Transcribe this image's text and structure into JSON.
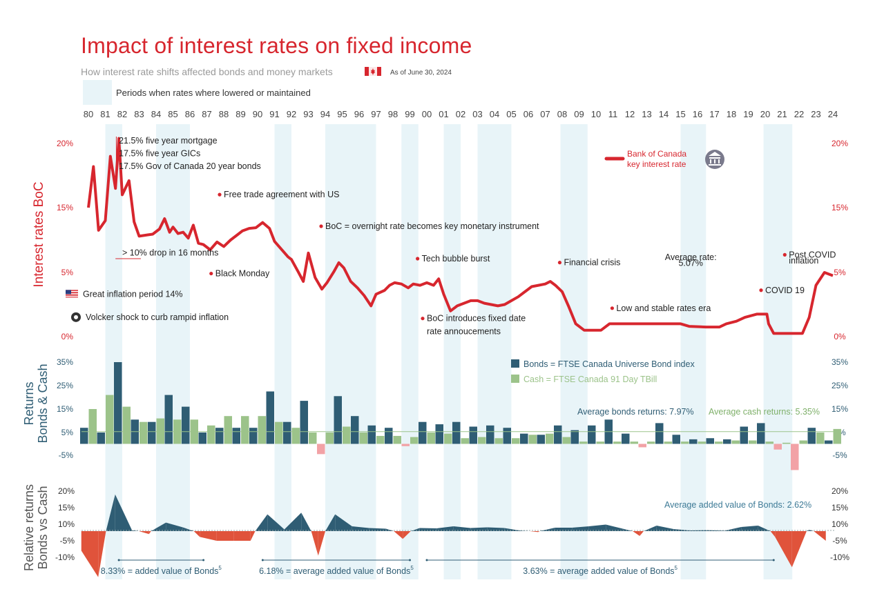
{
  "title": "Impact of interest rates on fixed income",
  "subtitle": "How interest rate shifts affected bonds and money markets",
  "as_of": "As of June 30, 2024",
  "legend_periods": "Periods when rates where lowered or maintained",
  "colors": {
    "red": "#d7262e",
    "bonds": "#2f5d74",
    "cash": "#9cc38a",
    "negative": "#f2a2a6",
    "relative_neg": "#e0533b",
    "shade": "#e8f4f8",
    "grey": "#8a8a8a"
  },
  "icons": {
    "flag_canada": "canada-flag-icon",
    "flag_us": "us-flag-icon",
    "seal": "federal-reserve-seal-icon",
    "bank": "bank-building-icon"
  },
  "chart_data": [
    {
      "type": "line",
      "name": "Interest rates BoC",
      "ylabel": "Interest rates  BoC",
      "ylim": [
        0,
        20
      ],
      "yticks_left": [
        "20%",
        "15%",
        "5%",
        "0%"
      ],
      "yticks_right": [
        "20%",
        "15%",
        "5%",
        "0%"
      ],
      "x_tick_labels": [
        "80",
        "81",
        "82",
        "83",
        "84",
        "85",
        "86",
        "87",
        "88",
        "89",
        "90",
        "91",
        "92",
        "93",
        "94",
        "95",
        "96",
        "97",
        "98",
        "99",
        "00",
        "01",
        "02",
        "03",
        "04",
        "05",
        "06",
        "07",
        "08",
        "09",
        "10",
        "11",
        "12",
        "13",
        "14",
        "15",
        "16",
        "17",
        "18",
        "19",
        "20",
        "21",
        "22",
        "23",
        "24"
      ],
      "x": [
        1980.0,
        1980.3,
        1980.6,
        1981.0,
        1981.3,
        1981.6,
        1981.8,
        1982.0,
        1982.4,
        1982.7,
        1983.0,
        1983.5,
        1983.8,
        1984.2,
        1984.5,
        1984.8,
        1985.0,
        1985.3,
        1985.6,
        1985.9,
        1986.2,
        1986.5,
        1986.8,
        1987.2,
        1987.6,
        1988.0,
        1988.4,
        1988.8,
        1989.1,
        1989.5,
        1989.9,
        1990.3,
        1990.7,
        1991.0,
        1991.4,
        1991.8,
        1992.0,
        1992.4,
        1992.7,
        1993.0,
        1993.4,
        1993.8,
        1994.1,
        1994.5,
        1994.8,
        1995.1,
        1995.5,
        1995.9,
        1996.3,
        1996.7,
        1997.0,
        1997.5,
        1997.8,
        1998.1,
        1998.5,
        1998.9,
        1999.2,
        1999.6,
        2000.0,
        2000.4,
        2000.7,
        2001.0,
        2001.4,
        2001.8,
        2002.2,
        2002.6,
        2003.0,
        2003.4,
        2003.8,
        2004.2,
        2004.6,
        2005.0,
        2005.4,
        2005.8,
        2006.2,
        2006.6,
        2007.0,
        2007.3,
        2007.6,
        2008.0,
        2008.4,
        2008.8,
        2009.3,
        2009.8,
        2010.3,
        2010.8,
        2011.2,
        2011.6,
        2012.5,
        2013.5,
        2014.5,
        2015.0,
        2015.5,
        2016.5,
        2017.3,
        2017.7,
        2018.3,
        2018.8,
        2019.5,
        2020.1,
        2020.2,
        2020.5,
        2021.0,
        2021.8,
        2022.2,
        2022.6,
        2023.0,
        2023.5,
        2024.0
      ],
      "y": [
        15.0,
        18.2,
        11.5,
        13.0,
        19.0,
        16.5,
        20.4,
        16.0,
        17.1,
        12.8,
        10.6,
        10.8,
        10.9,
        11.7,
        13.3,
        11.2,
        12.0,
        11.0,
        11.2,
        10.3,
        12.3,
        9.5,
        9.3,
        8.5,
        9.7,
        9.0,
        10.0,
        10.8,
        11.4,
        11.8,
        11.9,
        12.7,
        11.8,
        9.8,
        8.6,
        7.4,
        7.0,
        5.1,
        4.3,
        8.0,
        4.6,
        3.7,
        4.2,
        5.1,
        6.5,
        5.7,
        4.3,
        3.8,
        3.2,
        2.4,
        3.3,
        3.6,
        4.0,
        4.2,
        4.1,
        3.8,
        4.1,
        4.0,
        4.2,
        4.0,
        4.5,
        3.3,
        2.0,
        2.4,
        2.6,
        2.8,
        2.8,
        2.6,
        2.5,
        2.4,
        2.5,
        2.8,
        3.1,
        3.5,
        3.9,
        4.0,
        4.1,
        4.3,
        4.0,
        3.5,
        2.3,
        1.0,
        0.5,
        0.5,
        0.5,
        1.0,
        1.0,
        1.0,
        1.0,
        1.0,
        1.0,
        1.0,
        0.8,
        0.75,
        0.75,
        1.0,
        1.2,
        1.5,
        1.75,
        1.75,
        1.0,
        0.25,
        0.25,
        0.25,
        0.25,
        1.5,
        4.0,
        5.0,
        4.75
      ],
      "legend": "Bank of Canada key interest rate",
      "rate_lowered_periods": [
        [
          1981.0,
          1982.0
        ],
        [
          1984.0,
          1986.0
        ],
        [
          1991.0,
          1992.0
        ],
        [
          1994.0,
          1995.0
        ],
        [
          1995.0,
          1997.0
        ],
        [
          1998.5,
          1999.5
        ],
        [
          2001.0,
          2002.0
        ],
        [
          2003.0,
          2005.0
        ],
        [
          2007.9,
          2009.5
        ],
        [
          2015.0,
          2016.5
        ],
        [
          2019.9,
          2021.6
        ]
      ],
      "annotations": [
        {
          "label": "21.5% five year mortgage",
          "x": 1981.8,
          "y": 20.0
        },
        {
          "label": "17.5% five year GICs",
          "x": 1981.8,
          "y": 19.0
        },
        {
          "label": "17.5% Gov of Canada 20 year bonds",
          "x": 1981.8,
          "y": 18.0
        },
        {
          "label": "Free trade agreement with US",
          "x": 1988.0,
          "y": 15.8
        },
        {
          "label": "BoC = overnight rate becomes key monetary instrument",
          "x": 1994.0,
          "y": 11.7
        },
        {
          "label": "> 10% drop in 16 months",
          "x": 1982.0,
          "y": 7.6
        },
        {
          "label": "Black Monday",
          "x": 1987.5,
          "y": 4.7
        },
        {
          "label": "Tech bubble burst",
          "x": 1999.7,
          "y": 6.7
        },
        {
          "label": "BoC introduces fixed date",
          "x": 2000.0,
          "y": 1.2
        },
        {
          "label": "rate annoucements",
          "x": 2000.0,
          "y": 0.2
        },
        {
          "label": "Financial crisis",
          "x": 2008.1,
          "y": 6.1
        },
        {
          "label": "Low and stable rates era",
          "x": 2011.2,
          "y": 2.0
        },
        {
          "label": "Average rate:",
          "x": 2015.6,
          "y": 6.9
        },
        {
          "label": "5.07%",
          "x": 2015.6,
          "y": 6.0
        },
        {
          "label": "COVID 19",
          "x": 2020.0,
          "y": 3.4
        },
        {
          "label": "Post COVID",
          "x": 2021.4,
          "y": 7.3
        },
        {
          "label": "inflation",
          "x": 2021.4,
          "y": 6.4
        },
        {
          "label": "Great inflation period 14%",
          "x": 1980.0,
          "y": 3.1
        },
        {
          "label": "Volcker shock to curb rampid inflation",
          "x": 1980.0,
          "y": 1.3
        }
      ]
    },
    {
      "type": "bar",
      "name": "Returns Bonds & Cash",
      "ylabel": "Returns Bonds & Cash",
      "ylim": [
        -10,
        35
      ],
      "yticks": [
        "35%",
        "25%",
        "15%",
        "5%",
        "-5%"
      ],
      "categories": [
        "80",
        "81",
        "82",
        "83",
        "84",
        "85",
        "86",
        "87",
        "88",
        "89",
        "90",
        "91",
        "92",
        "93",
        "94",
        "95",
        "96",
        "97",
        "98",
        "99",
        "00",
        "01",
        "02",
        "03",
        "04",
        "05",
        "06",
        "07",
        "08",
        "09",
        "10",
        "11",
        "12",
        "13",
        "14",
        "15",
        "16",
        "17",
        "18",
        "19",
        "20",
        "21",
        "22",
        "23",
        "24"
      ],
      "series": [
        {
          "name": "Bonds = FTSE Canada Universe Bond index",
          "values": [
            7.0,
            5.0,
            35.0,
            10.5,
            9.5,
            21.0,
            16.0,
            5.0,
            7.0,
            7.0,
            7.0,
            22.5,
            9.5,
            18.5,
            -4.5,
            20.5,
            12.0,
            8.0,
            7.0,
            -1.0,
            9.5,
            8.5,
            9.5,
            7.5,
            8.0,
            7.0,
            4.5,
            4.0,
            8.0,
            6.0,
            8.0,
            10.5,
            4.5,
            -1.5,
            9.0,
            4.0,
            2.0,
            2.5,
            2.0,
            7.5,
            9.0,
            -2.5,
            -11.5,
            7.0,
            1.5
          ]
        },
        {
          "name": "Cash = FTSE Canada 91 Day TBill",
          "values": [
            15.0,
            21.0,
            16.0,
            9.5,
            11.0,
            10.5,
            10.5,
            8.0,
            12.0,
            12.0,
            12.0,
            9.5,
            7.0,
            5.0,
            5.0,
            7.5,
            5.0,
            3.5,
            3.5,
            3.0,
            5.0,
            4.5,
            2.5,
            3.0,
            2.5,
            2.5,
            4.0,
            4.5,
            3.0,
            1.0,
            1.0,
            1.0,
            1.0,
            1.0,
            1.0,
            1.0,
            1.0,
            1.0,
            1.5,
            1.5,
            1.0,
            0.5,
            1.5,
            5.0,
            6.5
          ]
        }
      ],
      "averages": [
        {
          "label": "Average bonds returns: 7.97%",
          "value": 7.97
        },
        {
          "label": "Average cash returns: 5.35%",
          "value": 5.35
        }
      ]
    },
    {
      "type": "area",
      "name": "Relative returns Bonds vs Cash",
      "ylabel": "Relative returns Bonds vs Cash",
      "ylim": [
        -10,
        20
      ],
      "yticks": [
        "20%",
        "15%",
        "10%",
        "-5%",
        "-10%"
      ],
      "x": [
        "80",
        "81",
        "82",
        "83",
        "84",
        "85",
        "86",
        "87",
        "88",
        "89",
        "90",
        "91",
        "92",
        "93",
        "94",
        "95",
        "96",
        "97",
        "98",
        "99",
        "00",
        "01",
        "02",
        "03",
        "04",
        "05",
        "06",
        "07",
        "08",
        "09",
        "10",
        "11",
        "12",
        "13",
        "14",
        "15",
        "16",
        "17",
        "18",
        "19",
        "20",
        "21",
        "22",
        "23",
        "24"
      ],
      "values": [
        -8.0,
        -16.0,
        19.0,
        1.0,
        -1.5,
        10.5,
        5.5,
        -3.0,
        -5.0,
        -5.0,
        -5.0,
        13.0,
        2.5,
        13.5,
        -9.5,
        13.0,
        7.0,
        4.5,
        3.5,
        -4.0,
        4.5,
        4.0,
        7.0,
        4.5,
        5.5,
        4.5,
        0.5,
        -0.5,
        5.0,
        5.0,
        7.0,
        9.5,
        3.5,
        -2.5,
        8.0,
        3.0,
        1.0,
        1.5,
        0.5,
        6.0,
        8.0,
        -3.0,
        -13.0,
        2.0,
        -5.0
      ],
      "average": {
        "label": "Average added value of Bonds: 2.62%",
        "value": 2.62
      },
      "period_labels": [
        {
          "label": "8.33% = added value of Bonds",
          "sup": "5",
          "from": 1981.8,
          "to": 1986.8
        },
        {
          "label": "6.18% = average added value of Bonds",
          "sup": "5",
          "from": 1990.3,
          "to": 1999.0
        },
        {
          "label": "3.63% = average added value of Bonds",
          "sup": "5",
          "from": 2000.0,
          "to": 2020.5
        }
      ]
    }
  ]
}
